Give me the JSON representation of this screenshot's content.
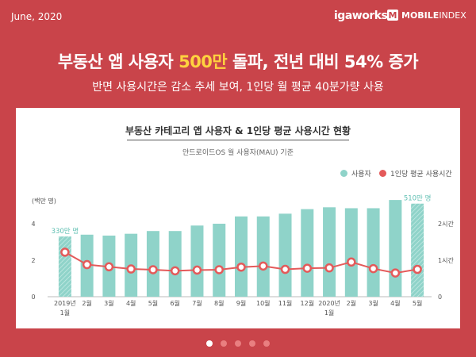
{
  "header": {
    "date": "June, 2020",
    "brand_igaworks": "igaworks",
    "brand_mobileindex_bold": "MOBILE",
    "brand_mobileindex_light": "INDEX",
    "brand_mobileindex_box": "M"
  },
  "headline": {
    "part1": "부동산 앱 사용자 ",
    "highlight": "500만",
    "part2": " 돌파, 전년 대비 54% 증가"
  },
  "subheadline": "반면 사용시간은 감소 추세 보여, 1인당 월 평균 40분가량 사용",
  "carousel": {
    "count": 5,
    "active_index": 0
  },
  "colors": {
    "background": "#c9444a",
    "bar": "#8fd3c9",
    "line": "#e45a5a",
    "highlight": "#ffd23f"
  },
  "chart_data": {
    "type": "bar",
    "title": "부동산 카테고리 앱 사용자 & 1인당 평균 사용시간 현황",
    "subtitle": "안드로이드OS 월 사용자(MAU) 기준",
    "ylabel": "(백만 명)",
    "ylim": [
      0,
      5
    ],
    "y_ticks": [
      "0",
      "2",
      "4"
    ],
    "y2_ticks": [
      "0",
      "1시간",
      "2시간"
    ],
    "y2lim": [
      0,
      2.5
    ],
    "categories": [
      "2019년\n1월",
      "2월",
      "3월",
      "4월",
      "5월",
      "6월",
      "7월",
      "8월",
      "9월",
      "10월",
      "11월",
      "12월",
      "2020년\n1월",
      "2월",
      "3월",
      "4월",
      "5월"
    ],
    "series": [
      {
        "name": "사용자",
        "type": "bar",
        "axis": "left",
        "values": [
          3.3,
          3.4,
          3.35,
          3.45,
          3.6,
          3.6,
          3.9,
          4.0,
          4.4,
          4.4,
          4.55,
          4.8,
          4.9,
          4.85,
          4.85,
          5.3,
          5.1
        ]
      },
      {
        "name": "1인당 평균 사용시간",
        "type": "line",
        "axis": "right",
        "values": [
          1.22,
          0.88,
          0.82,
          0.76,
          0.74,
          0.71,
          0.73,
          0.74,
          0.81,
          0.84,
          0.75,
          0.78,
          0.79,
          0.95,
          0.77,
          0.65,
          0.75
        ]
      }
    ],
    "annotations": [
      {
        "category_index": 0,
        "text": "330만 명"
      },
      {
        "category_index": 16,
        "text": "510만 명"
      }
    ],
    "legend_position": "top-right",
    "grid": false
  }
}
